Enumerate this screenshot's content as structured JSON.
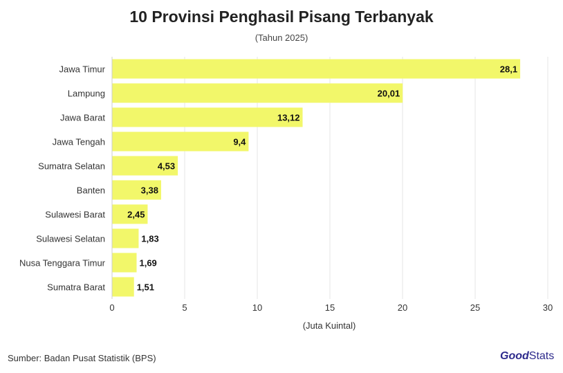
{
  "title": "10 Provinsi Penghasil Pisang Terbanyak",
  "subtitle": "(Tahun 2025)",
  "source": "Sumber: Badan Pusat Statistik (BPS)",
  "logo": {
    "good": "Good",
    "stats": "Stats"
  },
  "colors": {
    "bar": "#f2f76a",
    "grid": "#e6e6e6",
    "text": "#333333",
    "brand": "#2d2a8c"
  },
  "chart_data": {
    "type": "bar",
    "orientation": "horizontal",
    "categories": [
      "Jawa Timur",
      "Lampung",
      "Jawa Barat",
      "Jawa Tengah",
      "Sumatra Selatan",
      "Banten",
      "Sulawesi Barat",
      "Sulawesi Selatan",
      "Nusa Tenggara Timur",
      "Sumatra Barat"
    ],
    "values": [
      28.1,
      20.01,
      13.12,
      9.4,
      4.53,
      3.38,
      2.45,
      1.83,
      1.69,
      1.51
    ],
    "value_labels": [
      "28,1",
      "20,01",
      "13,12",
      "9,4",
      "4,53",
      "3,38",
      "2,45",
      "1,83",
      "1,69",
      "1,51"
    ],
    "xlabel": "(Juta Kuintal)",
    "xlim": [
      0,
      30
    ],
    "xticks": [
      0,
      5,
      10,
      15,
      20,
      25,
      30
    ],
    "grid": true
  }
}
